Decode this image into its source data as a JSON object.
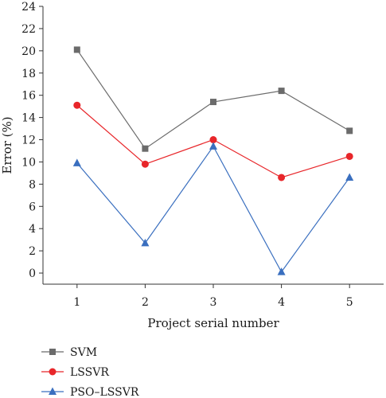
{
  "chart_data": {
    "type": "line",
    "xlabel": "Project serial number",
    "ylabel": "Error (%)",
    "categories": [
      1,
      2,
      3,
      4,
      5
    ],
    "xlim": [
      0.5,
      5.5
    ],
    "ylim": [
      -1,
      24
    ],
    "yticks": [
      0,
      2,
      4,
      6,
      8,
      10,
      12,
      14,
      16,
      18,
      20,
      22,
      24
    ],
    "legend_position": "bottom-left",
    "series": [
      {
        "name": "SVM",
        "color": "#6b6b6b",
        "marker": "square",
        "values": [
          20.1,
          11.2,
          15.4,
          16.4,
          12.8
        ]
      },
      {
        "name": "LSSVR",
        "color": "#e8262a",
        "marker": "circle",
        "values": [
          15.1,
          9.8,
          12.0,
          8.6,
          10.5
        ]
      },
      {
        "name": "PSO–LSSVR",
        "color": "#3a6fbf",
        "marker": "triangle",
        "values": [
          9.9,
          2.7,
          11.4,
          0.1,
          8.6
        ]
      }
    ]
  }
}
